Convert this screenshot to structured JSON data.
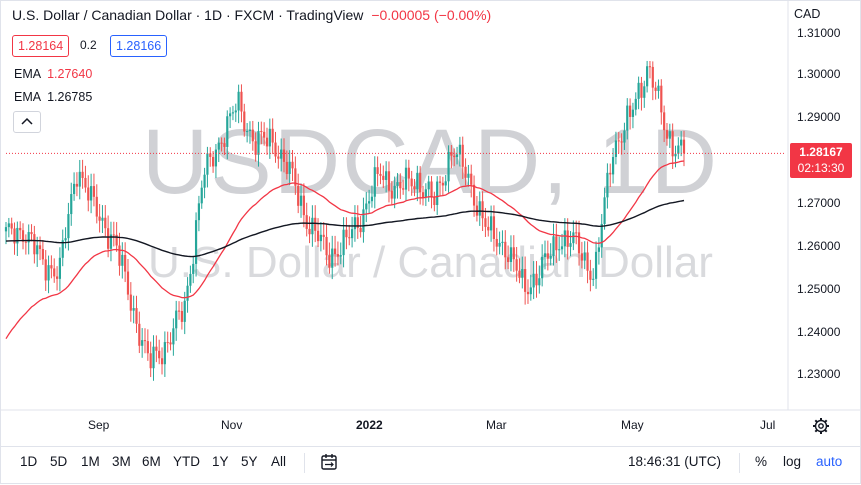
{
  "header": {
    "title": "U.S. Dollar / Canadian Dollar · 1D · FXCM · TradingView",
    "change": "−0.00005 (−0.00%)"
  },
  "quote": {
    "bid": "1.28164",
    "spread": "0.2",
    "ask": "1.28166"
  },
  "indicators": [
    {
      "name": "EMA",
      "value": "1.27640",
      "color": "#f23645"
    },
    {
      "name": "EMA",
      "value": "1.26785",
      "color": "#131722"
    }
  ],
  "watermark": {
    "symbol": "USDCAD, 1D",
    "description": "U.S. Dollar / Canadian Dollar"
  },
  "price_scale": {
    "currency": "CAD",
    "ticks": [
      "1.31000",
      "1.30000",
      "1.29000",
      "1.28000",
      "1.27000",
      "1.26000",
      "1.25000",
      "1.24000",
      "1.23000"
    ],
    "last_price": "1.28167",
    "countdown": "02:13:30"
  },
  "time_scale": {
    "ticks": [
      "Sep",
      "Nov",
      "2022",
      "Mar",
      "May",
      "Jul"
    ]
  },
  "bottom_toolbar": {
    "ranges": [
      "1D",
      "5D",
      "1M",
      "3M",
      "6M",
      "YTD",
      "1Y",
      "5Y",
      "All"
    ],
    "time": "18:46:31 (UTC)",
    "percent": "%",
    "log": "log",
    "auto": "auto"
  },
  "colors": {
    "up": "#26a69a",
    "down": "#ef5350",
    "ema_fast": "#f23645",
    "ema_slow": "#131722",
    "accent": "#2962ff"
  },
  "icons": {
    "collapse": "chevron-up-icon",
    "date_range": "calendar-range-icon",
    "settings": "gear-icon"
  },
  "chart_data": {
    "type": "candlestick",
    "symbol": "USDCAD",
    "interval": "1D",
    "ylim": [
      1.22,
      1.315
    ],
    "y_ticks": [
      1.23,
      1.24,
      1.25,
      1.26,
      1.27,
      1.28,
      1.29,
      1.3,
      1.31
    ],
    "x_ticks": [
      "Sep",
      "Nov",
      "2022",
      "Mar",
      "May",
      "Jul"
    ],
    "last_price": 1.28167,
    "series": [
      {
        "name": "EMA",
        "value": 1.2764
      },
      {
        "name": "EMA",
        "value": 1.26785
      }
    ],
    "price_path": [
      [
        "Aug 1",
        1.262
      ],
      [
        "Aug 20",
        1.264
      ],
      [
        "Aug 27",
        1.256
      ],
      [
        "Sep 3",
        1.254
      ],
      [
        "Sep 20",
        1.279
      ],
      [
        "Sep 27",
        1.268
      ],
      [
        "Oct 5",
        1.262
      ],
      [
        "Oct 15",
        1.247
      ],
      [
        "Oct 22",
        1.232
      ],
      [
        "Oct 29",
        1.237
      ],
      [
        "Nov 5",
        1.245
      ],
      [
        "Nov 19",
        1.275
      ],
      [
        "Nov 26",
        1.285
      ],
      [
        "Dec 3",
        1.293
      ],
      [
        "Dec 10",
        1.284
      ],
      [
        "Dec 17",
        1.285
      ],
      [
        "Dec 24",
        1.276
      ],
      [
        "Dec 31",
        1.265
      ],
      [
        "Jan 7",
        1.258
      ],
      [
        "Jan 14",
        1.26
      ],
      [
        "Jan 21",
        1.268
      ],
      [
        "Jan 28",
        1.277
      ],
      [
        "Feb 4",
        1.273
      ],
      [
        "Feb 11",
        1.276
      ],
      [
        "Feb 18",
        1.27
      ],
      [
        "Feb 25",
        1.283
      ],
      [
        "Mar 4",
        1.275
      ],
      [
        "Mar 11",
        1.263
      ],
      [
        "Mar 18",
        1.26
      ],
      [
        "Mar 25",
        1.25
      ],
      [
        "Apr 1",
        1.254
      ],
      [
        "Apr 8",
        1.262
      ],
      [
        "Apr 15",
        1.26
      ],
      [
        "Apr 22",
        1.253
      ],
      [
        "Apr 29",
        1.283
      ],
      [
        "May 6",
        1.29
      ],
      [
        "May 13",
        1.303
      ],
      [
        "May 20",
        1.286
      ],
      [
        "May 27",
        1.282
      ]
    ]
  }
}
